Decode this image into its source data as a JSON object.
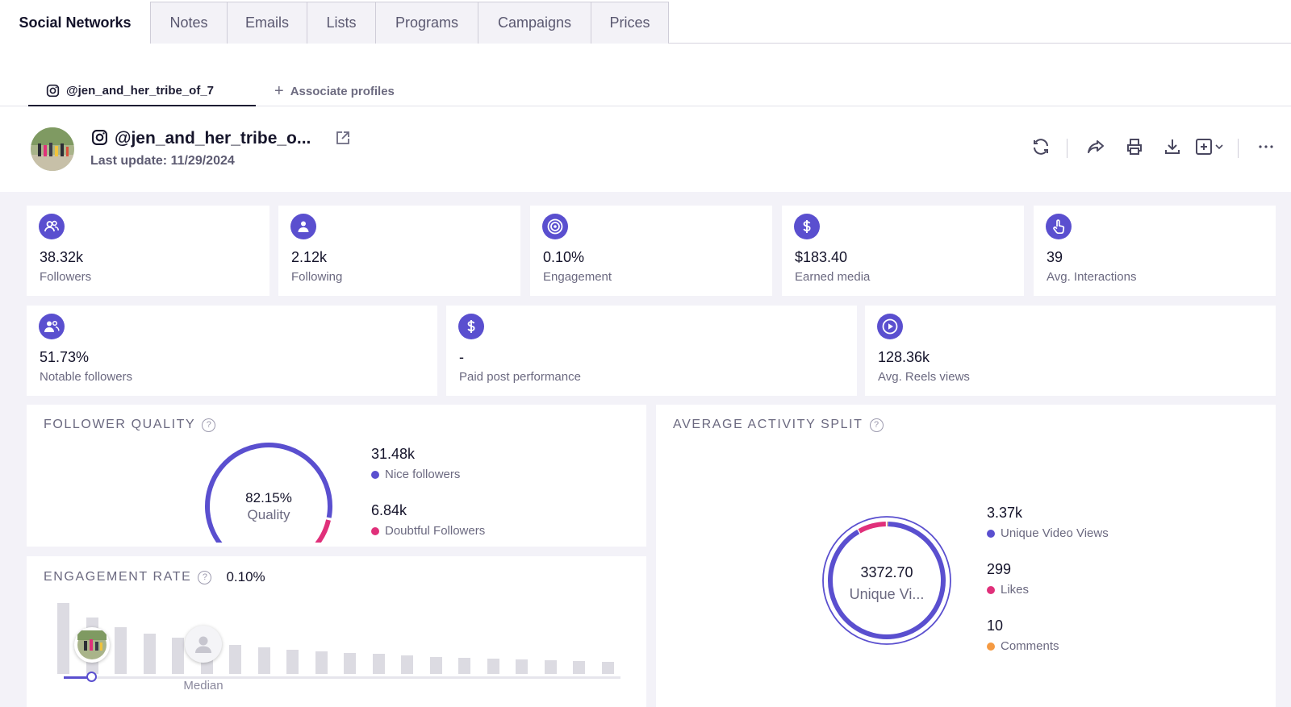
{
  "tabs": [
    "Social Networks",
    "Notes",
    "Emails",
    "Lists",
    "Programs",
    "Campaigns",
    "Prices"
  ],
  "subtabs": {
    "profile": "@jen_and_her_tribe_of_7",
    "associate": "Associate profiles"
  },
  "profile": {
    "name": "@jen_and_her_tribe_o...",
    "last_update": "Last update: 11/29/2024"
  },
  "actions": [
    "refresh-icon",
    "share-icon",
    "print-icon",
    "download-icon",
    "add-to-list-icon",
    "more-icon"
  ],
  "stats_row1": [
    {
      "icon": "followers-icon",
      "value": "38.32k",
      "label": "Followers"
    },
    {
      "icon": "following-icon",
      "value": "2.12k",
      "label": "Following"
    },
    {
      "icon": "target-icon",
      "value": "0.10%",
      "label": "Engagement"
    },
    {
      "icon": "dollar-icon",
      "value": "$183.40",
      "label": "Earned media"
    },
    {
      "icon": "pointer-icon",
      "value": "39",
      "label": "Avg. Interactions"
    }
  ],
  "stats_row2": [
    {
      "icon": "notable-followers-icon",
      "value": "51.73%",
      "label": "Notable followers"
    },
    {
      "icon": "dollar-icon",
      "value": "-",
      "label": "Paid post performance"
    },
    {
      "icon": "play-icon",
      "value": "128.36k",
      "label": "Avg. Reels views"
    }
  ],
  "follower_quality": {
    "title": "FOLLOWER QUALITY",
    "center_value": "82.15%",
    "center_label": "Quality",
    "items": [
      {
        "value": "31.48k",
        "label": "Nice followers",
        "color": "#5a4fcf"
      },
      {
        "value": "6.84k",
        "label": "Doubtful Followers",
        "color": "#e0307a"
      }
    ]
  },
  "engagement_rate": {
    "title": "ENGAGEMENT RATE",
    "value": "0.10%",
    "median_label": "Median"
  },
  "activity_split": {
    "title": "AVERAGE ACTIVITY SPLIT",
    "center_value": "3372.70",
    "center_label": "Unique Vi...",
    "items": [
      {
        "value": "3.37k",
        "label": "Unique Video Views",
        "color": "#5a4fcf"
      },
      {
        "value": "299",
        "label": "Likes",
        "color": "#e0307a"
      },
      {
        "value": "10",
        "label": "Comments",
        "color": "#f59a42"
      }
    ]
  },
  "colors": {
    "accent": "#5a4fcf",
    "pink": "#e0307a",
    "orange": "#f59a42"
  }
}
